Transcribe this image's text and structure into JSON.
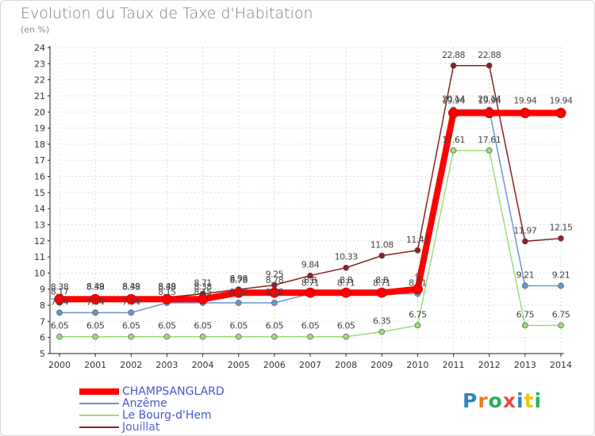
{
  "title": "Evolution du Taux de Taxe d'Habitation",
  "unit_label": "(en %)",
  "logo": {
    "text": "Proxiti",
    "colors": [
      "#2e86c1",
      "#e67e22",
      "#27ae60",
      "#e74c3c",
      "#2e86c1",
      "#f1c40f",
      "#27ae60"
    ]
  },
  "chart_data": {
    "type": "line",
    "x": [
      "2000",
      "2001",
      "2002",
      "2003",
      "2004",
      "2005",
      "2006",
      "2007",
      "2008",
      "2009",
      "2010",
      "2011",
      "2012",
      "2013",
      "2014"
    ],
    "ylim": [
      5,
      24
    ],
    "yticks": [
      5,
      6,
      7,
      8,
      9,
      10,
      11,
      12,
      13,
      14,
      15,
      16,
      17,
      18,
      19,
      20,
      21,
      22,
      23,
      24
    ],
    "grid": true,
    "legend": "bottom-left",
    "series": [
      {
        "name": "CHAMPSANGLARD",
        "color": "#ff0000",
        "values": [
          8.38,
          8.38,
          8.38,
          8.38,
          8.38,
          8.78,
          8.78,
          8.78,
          8.78,
          8.78,
          9.0,
          19.94,
          19.94,
          19.94,
          19.94
        ],
        "labels": []
      },
      {
        "name": "Anzême",
        "color": "#6699cc",
        "values": [
          7.54,
          7.54,
          7.54,
          8.15,
          8.15,
          8.15,
          8.15,
          8.71,
          8.71,
          8.71,
          8.71,
          20.14,
          20.14,
          9.21,
          9.21
        ],
        "labels": [
          "7.54",
          "7.54",
          "7.54",
          "8.15",
          "8.15",
          "8.15",
          "8.15",
          "8.71",
          "8.71",
          "8.71",
          "8.71",
          "20.14",
          "20.14",
          "9.21",
          "9.21"
        ]
      },
      {
        "name": "Le Bourg-d'Hem",
        "color": "#99dd77",
        "values": [
          6.05,
          6.05,
          6.05,
          6.05,
          6.05,
          6.05,
          6.05,
          6.05,
          6.05,
          6.35,
          6.75,
          17.61,
          17.61,
          6.75,
          6.75
        ],
        "labels": [
          "6.05",
          "6.05",
          "6.05",
          "6.05",
          "6.05",
          "6.05",
          "6.05",
          "6.05",
          "6.05",
          "6.35",
          "6.75",
          "17.61",
          "17.61",
          "6.75",
          "6.75"
        ]
      },
      {
        "name": "Jouillat",
        "color": "#882222",
        "values": [
          8.17,
          8.49,
          8.49,
          8.49,
          8.71,
          8.98,
          9.25,
          9.84,
          10.33,
          11.08,
          11.41,
          22.88,
          22.88,
          11.97,
          12.15
        ],
        "labels": [
          "8.17",
          "8.49",
          "8.49",
          "8.49",
          "8.71",
          "8.98",
          "9.25",
          "9.84",
          "10.33",
          "11.08",
          "11.41",
          "22.88",
          "22.88",
          "11.97",
          "12.15"
        ]
      }
    ],
    "extra_labels": [
      {
        "x": "2000",
        "value": 8.38,
        "text": "8.38"
      },
      {
        "x": "2001",
        "value": 8.38,
        "text": "8.38"
      },
      {
        "x": "2002",
        "value": 8.38,
        "text": "8.38"
      },
      {
        "x": "2003",
        "value": 8.38,
        "text": "8.38"
      },
      {
        "x": "2004",
        "value": 8.38,
        "text": "8.38"
      },
      {
        "x": "2005",
        "value": 8.78,
        "text": "8.78"
      },
      {
        "x": "2006",
        "value": 8.78,
        "text": "8.78"
      },
      {
        "x": "2007",
        "value": 8.78,
        "text": "8.8"
      },
      {
        "x": "2008",
        "value": 8.78,
        "text": "8.8"
      },
      {
        "x": "2009",
        "value": 8.78,
        "text": "8.8"
      },
      {
        "x": "2010",
        "value": 9.0,
        "text": "9"
      },
      {
        "x": "2011",
        "value": 19.94,
        "text": "19.94"
      },
      {
        "x": "2012",
        "value": 19.94,
        "text": "19.94"
      },
      {
        "x": "2013",
        "value": 19.94,
        "text": "19.94"
      },
      {
        "x": "2014",
        "value": 19.94,
        "text": "19.94"
      }
    ]
  }
}
